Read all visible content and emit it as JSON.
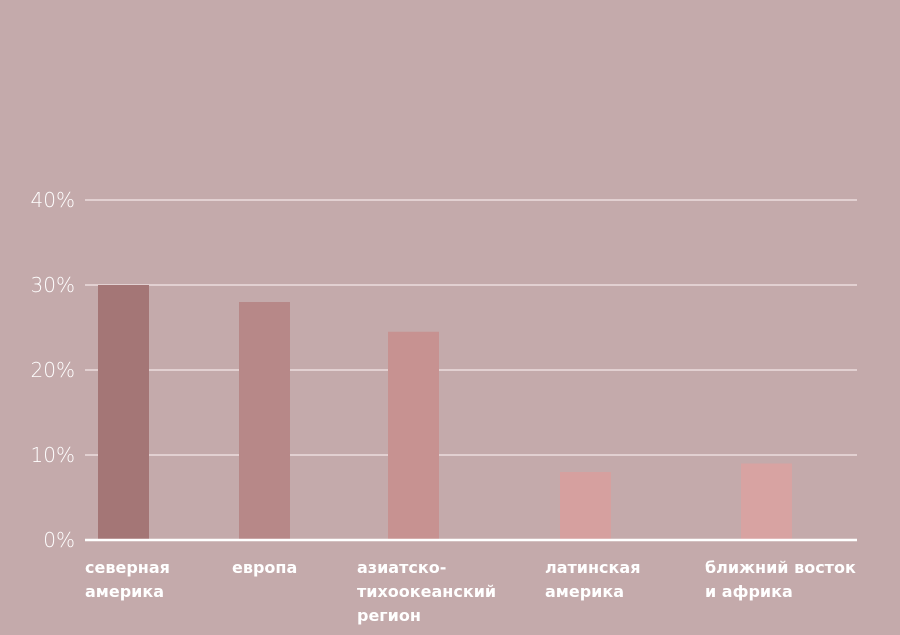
{
  "chart_data": {
    "type": "bar",
    "categories": [
      "северная америка",
      "европа",
      "азиатско-тихоокеанский регион",
      "латинская америка",
      "ближний восток и африка"
    ],
    "values": [
      30,
      28,
      24.5,
      8,
      9
    ],
    "colors": [
      "#a47676",
      "#b78888",
      "#c79291",
      "#d6a09f",
      "#d8a3a2"
    ],
    "ylim": [
      0,
      40
    ],
    "yticks": [
      {
        "value": 0,
        "label": "0%"
      },
      {
        "value": 10,
        "label": "10%"
      },
      {
        "value": 20,
        "label": "20%"
      },
      {
        "value": 30,
        "label": "30%"
      },
      {
        "value": 40,
        "label": "40%"
      }
    ],
    "grid": true
  }
}
